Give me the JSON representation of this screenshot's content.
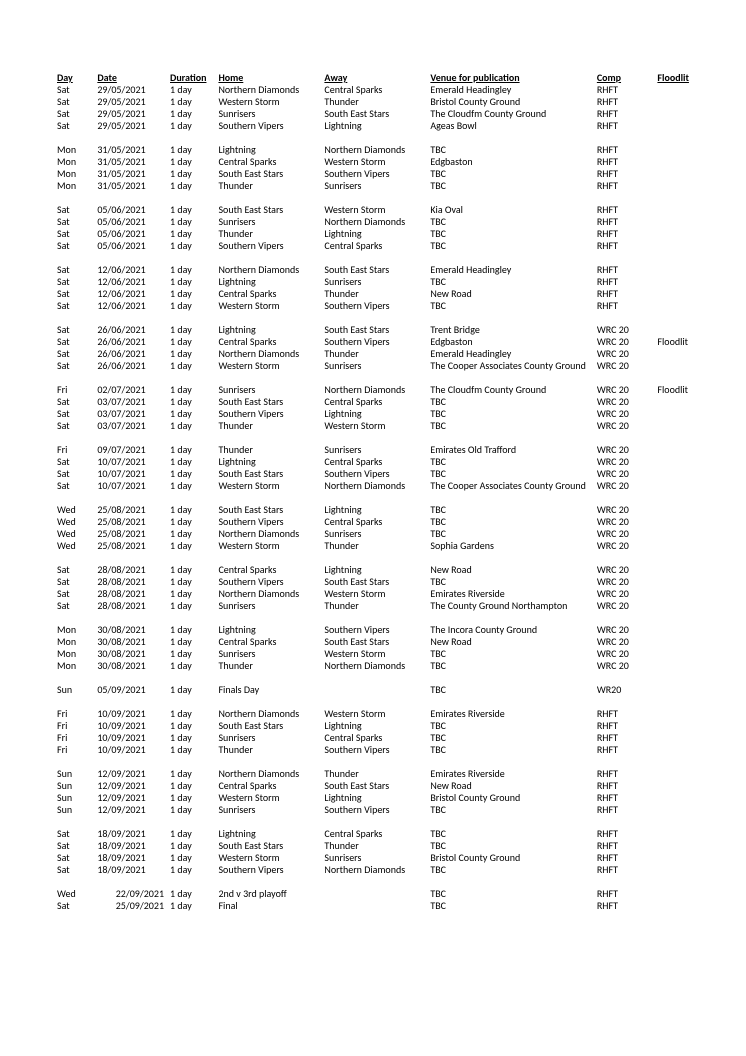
{
  "headers": {
    "day": "Day",
    "date": "Date",
    "duration": "Duration",
    "home": "Home",
    "away": "Away",
    "venue": "Venue for publication",
    "comp": "Comp",
    "floodlit": "Floodlit"
  },
  "groups": [
    [
      {
        "day": "Sat",
        "date": "29/05/2021",
        "dur": "1 day",
        "home": "Northern Diamonds",
        "away": "Central Sparks",
        "venue": "Emerald Headingley",
        "comp": "RHFT",
        "flood": ""
      },
      {
        "day": "Sat",
        "date": "29/05/2021",
        "dur": "1 day",
        "home": "Western Storm",
        "away": "Thunder",
        "venue": "Bristol County Ground",
        "comp": "RHFT",
        "flood": ""
      },
      {
        "day": "Sat",
        "date": "29/05/2021",
        "dur": "1 day",
        "home": "Sunrisers",
        "away": "South East Stars",
        "venue": "The Cloudfm County Ground",
        "comp": "RHFT",
        "flood": ""
      },
      {
        "day": "Sat",
        "date": "29/05/2021",
        "dur": "1 day",
        "home": "Southern Vipers",
        "away": "Lightning",
        "venue": "Ageas Bowl",
        "comp": "RHFT",
        "flood": ""
      }
    ],
    [
      {
        "day": "Mon",
        "date": "31/05/2021",
        "dur": "1 day",
        "home": "Lightning",
        "away": "Northern Diamonds",
        "venue": "TBC",
        "comp": "RHFT",
        "flood": ""
      },
      {
        "day": "Mon",
        "date": "31/05/2021",
        "dur": "1 day",
        "home": "Central Sparks",
        "away": "Western Storm",
        "venue": "Edgbaston",
        "comp": "RHFT",
        "flood": ""
      },
      {
        "day": "Mon",
        "date": "31/05/2021",
        "dur": "1 day",
        "home": "South East Stars",
        "away": "Southern Vipers",
        "venue": "TBC",
        "comp": "RHFT",
        "flood": ""
      },
      {
        "day": "Mon",
        "date": "31/05/2021",
        "dur": "1 day",
        "home": "Thunder",
        "away": "Sunrisers",
        "venue": "TBC",
        "comp": "RHFT",
        "flood": ""
      }
    ],
    [
      {
        "day": "Sat",
        "date": "05/06/2021",
        "dur": "1 day",
        "home": "South East Stars",
        "away": "Western Storm",
        "venue": "Kia Oval",
        "comp": "RHFT",
        "flood": ""
      },
      {
        "day": "Sat",
        "date": "05/06/2021",
        "dur": "1 day",
        "home": "Sunrisers",
        "away": "Northern Diamonds",
        "venue": "TBC",
        "comp": "RHFT",
        "flood": ""
      },
      {
        "day": "Sat",
        "date": "05/06/2021",
        "dur": "1 day",
        "home": "Thunder",
        "away": "Lightning",
        "venue": "TBC",
        "comp": "RHFT",
        "flood": ""
      },
      {
        "day": "Sat",
        "date": "05/06/2021",
        "dur": "1 day",
        "home": "Southern Vipers",
        "away": "Central Sparks",
        "venue": "TBC",
        "comp": "RHFT",
        "flood": ""
      }
    ],
    [
      {
        "day": "Sat",
        "date": "12/06/2021",
        "dur": "1 day",
        "home": "Northern Diamonds",
        "away": "South East Stars",
        "venue": "Emerald Headingley",
        "comp": "RHFT",
        "flood": ""
      },
      {
        "day": "Sat",
        "date": "12/06/2021",
        "dur": "1 day",
        "home": "Lightning",
        "away": "Sunrisers",
        "venue": "TBC",
        "comp": "RHFT",
        "flood": ""
      },
      {
        "day": "Sat",
        "date": "12/06/2021",
        "dur": "1 day",
        "home": "Central Sparks",
        "away": "Thunder",
        "venue": "New Road",
        "comp": "RHFT",
        "flood": ""
      },
      {
        "day": "Sat",
        "date": "12/06/2021",
        "dur": "1 day",
        "home": "Western Storm",
        "away": "Southern Vipers",
        "venue": "TBC",
        "comp": "RHFT",
        "flood": ""
      }
    ],
    [
      {
        "day": "Sat",
        "date": "26/06/2021",
        "dur": "1 day",
        "home": "Lightning",
        "away": "South East Stars",
        "venue": "Trent Bridge",
        "comp": "WRC 20",
        "flood": ""
      },
      {
        "day": "Sat",
        "date": "26/06/2021",
        "dur": "1 day",
        "home": "Central Sparks",
        "away": "Southern Vipers",
        "venue": "Edgbaston",
        "comp": "WRC 20",
        "flood": "Floodlit"
      },
      {
        "day": "Sat",
        "date": "26/06/2021",
        "dur": "1 day",
        "home": "Northern Diamonds",
        "away": "Thunder",
        "venue": "Emerald Headingley",
        "comp": "WRC 20",
        "flood": ""
      },
      {
        "day": "Sat",
        "date": "26/06/2021",
        "dur": "1 day",
        "home": "Western Storm",
        "away": "Sunrisers",
        "venue": "The Cooper Associates County Ground",
        "comp": "WRC 20",
        "flood": ""
      }
    ],
    [
      {
        "day": "Fri",
        "date": "02/07/2021",
        "dur": "1 day",
        "home": "Sunrisers",
        "away": "Northern Diamonds",
        "venue": "The Cloudfm County Ground",
        "comp": "WRC 20",
        "flood": "Floodlit"
      },
      {
        "day": "Sat",
        "date": "03/07/2021",
        "dur": "1 day",
        "home": "South East Stars",
        "away": "Central Sparks",
        "venue": "TBC",
        "comp": "WRC 20",
        "flood": ""
      },
      {
        "day": "Sat",
        "date": "03/07/2021",
        "dur": "1 day",
        "home": "Southern Vipers",
        "away": "Lightning",
        "venue": "TBC",
        "comp": "WRC 20",
        "flood": ""
      },
      {
        "day": "Sat",
        "date": "03/07/2021",
        "dur": "1 day",
        "home": "Thunder",
        "away": "Western Storm",
        "venue": "TBC",
        "comp": "WRC 20",
        "flood": ""
      }
    ],
    [
      {
        "day": "Fri",
        "date": "09/07/2021",
        "dur": "1 day",
        "home": "Thunder",
        "away": "Sunrisers",
        "venue": "Emirates Old Trafford",
        "comp": "WRC 20",
        "flood": ""
      },
      {
        "day": "Sat",
        "date": "10/07/2021",
        "dur": "1 day",
        "home": "Lightning",
        "away": "Central Sparks",
        "venue": "TBC",
        "comp": "WRC 20",
        "flood": ""
      },
      {
        "day": "Sat",
        "date": "10/07/2021",
        "dur": "1 day",
        "home": "South East Stars",
        "away": "Southern Vipers",
        "venue": "TBC",
        "comp": "WRC 20",
        "flood": ""
      },
      {
        "day": "Sat",
        "date": "10/07/2021",
        "dur": "1 day",
        "home": "Western Storm",
        "away": "Northern Diamonds",
        "venue": "The Cooper Associates County Ground",
        "comp": "WRC 20",
        "flood": ""
      }
    ],
    [
      {
        "day": "Wed",
        "date": "25/08/2021",
        "dur": "1 day",
        "home": "South East Stars",
        "away": "Lightning",
        "venue": "TBC",
        "comp": "WRC 20",
        "flood": ""
      },
      {
        "day": "Wed",
        "date": "25/08/2021",
        "dur": "1 day",
        "home": "Southern Vipers",
        "away": "Central Sparks",
        "venue": "TBC",
        "comp": "WRC 20",
        "flood": ""
      },
      {
        "day": "Wed",
        "date": "25/08/2021",
        "dur": "1 day",
        "home": "Northern Diamonds",
        "away": "Sunrisers",
        "venue": "TBC",
        "comp": "WRC 20",
        "flood": ""
      },
      {
        "day": "Wed",
        "date": "25/08/2021",
        "dur": "1 day",
        "home": "Western Storm",
        "away": "Thunder",
        "venue": "Sophia Gardens",
        "comp": "WRC 20",
        "flood": ""
      }
    ],
    [
      {
        "day": "Sat",
        "date": "28/08/2021",
        "dur": "1 day",
        "home": "Central Sparks",
        "away": "Lightning",
        "venue": "New Road",
        "comp": "WRC 20",
        "flood": ""
      },
      {
        "day": "Sat",
        "date": "28/08/2021",
        "dur": "1 day",
        "home": "Southern Vipers",
        "away": "South East Stars",
        "venue": "TBC",
        "comp": "WRC 20",
        "flood": ""
      },
      {
        "day": "Sat",
        "date": "28/08/2021",
        "dur": "1 day",
        "home": "Northern Diamonds",
        "away": "Western Storm",
        "venue": "Emirates Riverside",
        "comp": "WRC 20",
        "flood": ""
      },
      {
        "day": "Sat",
        "date": "28/08/2021",
        "dur": "1 day",
        "home": "Sunrisers",
        "away": "Thunder",
        "venue": "The County Ground Northampton",
        "comp": "WRC 20",
        "flood": ""
      }
    ],
    [
      {
        "day": "Mon",
        "date": "30/08/2021",
        "dur": "1 day",
        "home": "Lightning",
        "away": "Southern Vipers",
        "venue": "The Incora County Ground",
        "comp": "WRC 20",
        "flood": ""
      },
      {
        "day": "Mon",
        "date": "30/08/2021",
        "dur": "1 day",
        "home": "Central Sparks",
        "away": "South East Stars",
        "venue": "New Road",
        "comp": "WRC 20",
        "flood": ""
      },
      {
        "day": "Mon",
        "date": "30/08/2021",
        "dur": "1 day",
        "home": "Sunrisers",
        "away": "Western Storm",
        "venue": "TBC",
        "comp": "WRC 20",
        "flood": ""
      },
      {
        "day": "Mon",
        "date": "30/08/2021",
        "dur": "1 day",
        "home": "Thunder",
        "away": "Northern Diamonds",
        "venue": "TBC",
        "comp": "WRC 20",
        "flood": ""
      }
    ],
    [
      {
        "day": "Sun",
        "date": "05/09/2021",
        "dur": "1 day",
        "home": "Finals Day",
        "away": "",
        "venue": "TBC",
        "comp": "WR20",
        "flood": ""
      }
    ],
    [
      {
        "day": "Fri",
        "date": "10/09/2021",
        "dur": "1 day",
        "home": "Northern Diamonds",
        "away": "Western Storm",
        "venue": "Emirates Riverside",
        "comp": "RHFT",
        "flood": ""
      },
      {
        "day": "Fri",
        "date": "10/09/2021",
        "dur": "1 day",
        "home": "South East Stars",
        "away": "Lightning",
        "venue": "TBC",
        "comp": "RHFT",
        "flood": ""
      },
      {
        "day": "Fri",
        "date": "10/09/2021",
        "dur": "1 day",
        "home": "Sunrisers",
        "away": "Central Sparks",
        "venue": "TBC",
        "comp": "RHFT",
        "flood": ""
      },
      {
        "day": "Fri",
        "date": "10/09/2021",
        "dur": "1 day",
        "home": "Thunder",
        "away": "Southern Vipers",
        "venue": "TBC",
        "comp": "RHFT",
        "flood": ""
      }
    ],
    [
      {
        "day": "Sun",
        "date": "12/09/2021",
        "dur": "1 day",
        "home": "Northern Diamonds",
        "away": "Thunder",
        "venue": "Emirates Riverside",
        "comp": "RHFT",
        "flood": ""
      },
      {
        "day": "Sun",
        "date": "12/09/2021",
        "dur": "1 day",
        "home": "Central Sparks",
        "away": "South East Stars",
        "venue": "New Road",
        "comp": "RHFT",
        "flood": ""
      },
      {
        "day": "Sun",
        "date": "12/09/2021",
        "dur": "1 day",
        "home": "Western Storm",
        "away": "Lightning",
        "venue": "Bristol County Ground",
        "comp": "RHFT",
        "flood": ""
      },
      {
        "day": "Sun",
        "date": "12/09/2021",
        "dur": "1 day",
        "home": "Sunrisers",
        "away": "Southern Vipers",
        "venue": "TBC",
        "comp": "RHFT",
        "flood": ""
      }
    ],
    [
      {
        "day": "Sat",
        "date": "18/09/2021",
        "dur": "1 day",
        "home": "Lightning",
        "away": "Central Sparks",
        "venue": "TBC",
        "comp": "RHFT",
        "flood": ""
      },
      {
        "day": "Sat",
        "date": "18/09/2021",
        "dur": "1 day",
        "home": "South East Stars",
        "away": "Thunder",
        "venue": "TBC",
        "comp": "RHFT",
        "flood": ""
      },
      {
        "day": "Sat",
        "date": "18/09/2021",
        "dur": "1 day",
        "home": "Western Storm",
        "away": "Sunrisers",
        "venue": "Bristol County Ground",
        "comp": "RHFT",
        "flood": ""
      },
      {
        "day": "Sat",
        "date": "18/09/2021",
        "dur": "1 day",
        "home": "Southern Vipers",
        "away": "Northern Diamonds",
        "venue": "TBC",
        "comp": "RHFT",
        "flood": ""
      }
    ],
    [
      {
        "day": "Wed",
        "date": "22/09/2021",
        "dur": "1 day",
        "home": "2nd v 3rd playoff",
        "away": "",
        "venue": "TBC",
        "comp": "RHFT",
        "flood": "",
        "date_right": true
      },
      {
        "day": "Sat",
        "date": "25/09/2021",
        "dur": "1 day",
        "home": "Final",
        "away": "",
        "venue": "TBC",
        "comp": "RHFT",
        "flood": "",
        "date_right": true
      }
    ]
  ]
}
